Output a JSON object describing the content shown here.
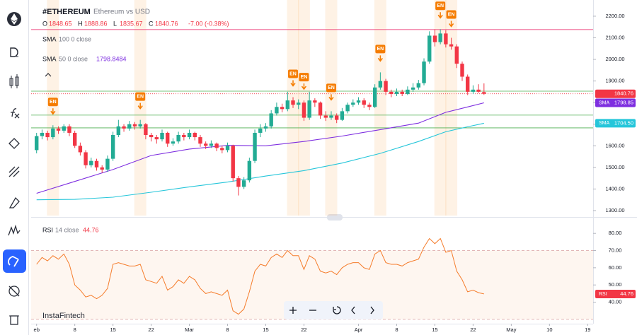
{
  "header": {
    "symbol": "#ETHEREUM",
    "description": "Ethereum vs USD",
    "ohlc": [
      {
        "key": "O",
        "value": "1848.65"
      },
      {
        "key": "H",
        "value": "1888.86"
      },
      {
        "key": "L",
        "value": "1835.67"
      },
      {
        "key": "C",
        "value": "1840.76"
      }
    ],
    "change": "-7.00 (-0.38%)"
  },
  "watermark": "InstaFintech",
  "chart_data": [
    {
      "type": "candlestick",
      "up_color": "#22ab94",
      "down_color": "#f23645",
      "xlim": [
        -1,
        102
      ],
      "xticks": [
        {
          "value": 0,
          "label": "eb"
        },
        {
          "value": 7,
          "label": "8"
        },
        {
          "value": 14,
          "label": "15"
        },
        {
          "value": 21,
          "label": "22"
        },
        {
          "value": 28,
          "label": "Mar"
        },
        {
          "value": 35,
          "label": "8"
        },
        {
          "value": 42,
          "label": "15"
        },
        {
          "value": 49,
          "label": "22"
        },
        {
          "value": 59,
          "label": "Apr"
        },
        {
          "value": 66,
          "label": "8"
        },
        {
          "value": 73,
          "label": "15"
        },
        {
          "value": 80,
          "label": "22"
        },
        {
          "value": 87,
          "label": "May"
        },
        {
          "value": 94,
          "label": "10"
        },
        {
          "value": 101,
          "label": "19"
        }
      ],
      "ylim": [
        1277,
        2275
      ],
      "yticks": [
        {
          "value": 2200,
          "label": "2200.00"
        },
        {
          "value": 2100,
          "label": "2100.00"
        },
        {
          "value": 2000,
          "label": "2000.00"
        },
        {
          "value": 1900,
          "label": "1900.00"
        },
        {
          "value": 1800,
          "label": "1800.00"
        },
        {
          "value": 1700,
          "label": "1700.00"
        },
        {
          "value": 1600,
          "label": "1600.00"
        },
        {
          "value": 1500,
          "label": "1500.00"
        },
        {
          "value": 1400,
          "label": "1400.00"
        },
        {
          "value": 1300,
          "label": "1300.00"
        }
      ],
      "candles": [
        [
          1580,
          1660,
          1565,
          1645
        ],
        [
          1645,
          1675,
          1630,
          1660
        ],
        [
          1660,
          1670,
          1625,
          1640
        ],
        [
          1640,
          1695,
          1630,
          1680
        ],
        [
          1680,
          1690,
          1655,
          1670
        ],
        [
          1670,
          1700,
          1660,
          1690
        ],
        [
          1690,
          1700,
          1645,
          1660
        ],
        [
          1660,
          1670,
          1590,
          1600
        ],
        [
          1600,
          1615,
          1555,
          1570
        ],
        [
          1570,
          1580,
          1495,
          1510
        ],
        [
          1510,
          1545,
          1500,
          1530
        ],
        [
          1530,
          1540,
          1485,
          1500
        ],
        [
          1500,
          1510,
          1475,
          1490
        ],
        [
          1490,
          1555,
          1480,
          1540
        ],
        [
          1540,
          1665,
          1530,
          1650
        ],
        [
          1650,
          1720,
          1640,
          1690
        ],
        [
          1690,
          1700,
          1665,
          1680
        ],
        [
          1680,
          1715,
          1670,
          1700
        ],
        [
          1700,
          1710,
          1675,
          1690
        ],
        [
          1690,
          1720,
          1680,
          1700
        ],
        [
          1700,
          1705,
          1630,
          1650
        ],
        [
          1650,
          1660,
          1620,
          1640
        ],
        [
          1640,
          1650,
          1610,
          1630
        ],
        [
          1630,
          1675,
          1620,
          1660
        ],
        [
          1660,
          1665,
          1595,
          1610
        ],
        [
          1610,
          1635,
          1600,
          1620
        ],
        [
          1620,
          1665,
          1610,
          1650
        ],
        [
          1650,
          1660,
          1625,
          1640
        ],
        [
          1640,
          1675,
          1630,
          1660
        ],
        [
          1660,
          1665,
          1625,
          1640
        ],
        [
          1640,
          1650,
          1595,
          1610
        ],
        [
          1610,
          1620,
          1585,
          1600
        ],
        [
          1600,
          1625,
          1590,
          1610
        ],
        [
          1610,
          1615,
          1575,
          1590
        ],
        [
          1590,
          1600,
          1565,
          1580
        ],
        [
          1580,
          1615,
          1570,
          1600
        ],
        [
          1600,
          1605,
          1435,
          1450
        ],
        [
          1450,
          1460,
          1370,
          1410
        ],
        [
          1410,
          1455,
          1400,
          1440
        ],
        [
          1440,
          1545,
          1430,
          1530
        ],
        [
          1530,
          1675,
          1520,
          1660
        ],
        [
          1660,
          1700,
          1640,
          1680
        ],
        [
          1680,
          1705,
          1665,
          1690
        ],
        [
          1690,
          1765,
          1680,
          1750
        ],
        [
          1750,
          1800,
          1740,
          1780
        ],
        [
          1780,
          1795,
          1755,
          1770
        ],
        [
          1770,
          1850,
          1760,
          1810
        ],
        [
          1810,
          1825,
          1775,
          1790
        ],
        [
          1790,
          1815,
          1770,
          1800
        ],
        [
          1800,
          1810,
          1715,
          1730
        ],
        [
          1730,
          1850,
          1720,
          1810
        ],
        [
          1810,
          1820,
          1780,
          1800
        ],
        [
          1800,
          1805,
          1725,
          1740
        ],
        [
          1740,
          1760,
          1715,
          1730
        ],
        [
          1730,
          1760,
          1720,
          1740
        ],
        [
          1740,
          1750,
          1705,
          1720
        ],
        [
          1720,
          1775,
          1715,
          1760
        ],
        [
          1760,
          1800,
          1750,
          1790
        ],
        [
          1790,
          1815,
          1780,
          1800
        ],
        [
          1800,
          1825,
          1790,
          1810
        ],
        [
          1810,
          1820,
          1775,
          1790
        ],
        [
          1790,
          1800,
          1765,
          1780
        ],
        [
          1780,
          1885,
          1775,
          1870
        ],
        [
          1870,
          1940,
          1860,
          1900
        ],
        [
          1900,
          1910,
          1835,
          1850
        ],
        [
          1850,
          1860,
          1825,
          1840
        ],
        [
          1840,
          1865,
          1830,
          1850
        ],
        [
          1850,
          1860,
          1830,
          1840
        ],
        [
          1840,
          1875,
          1835,
          1860
        ],
        [
          1860,
          1890,
          1850,
          1870
        ],
        [
          1870,
          1905,
          1860,
          1890
        ],
        [
          1890,
          2005,
          1880,
          1990
        ],
        [
          1990,
          2130,
          1980,
          2110
        ],
        [
          2110,
          2140,
          2060,
          2080
        ],
        [
          2080,
          2140,
          2070,
          2120
        ],
        [
          2120,
          2135,
          2055,
          2070
        ],
        [
          2070,
          2100,
          2045,
          2060
        ],
        [
          2060,
          2070,
          1960,
          1980
        ],
        [
          1980,
          1990,
          1900,
          1920
        ],
        [
          1920,
          1930,
          1835,
          1850
        ],
        [
          1850,
          1880,
          1840,
          1860
        ],
        [
          1860,
          1885,
          1845,
          1850
        ],
        [
          1848.65,
          1888.86,
          1835.67,
          1840.76
        ]
      ],
      "price_label": {
        "value": 1840.76,
        "label": "1840.76",
        "color": "#f23645"
      },
      "indicators": [
        {
          "name": "SMA",
          "params": "100 0 close",
          "color": "#26c6da",
          "x": [
            0,
            7,
            14,
            21,
            28,
            35,
            42,
            49,
            56,
            63,
            70,
            75,
            79,
            82
          ],
          "values": [
            1350,
            1352,
            1362,
            1385,
            1410,
            1432,
            1460,
            1485,
            1520,
            1565,
            1620,
            1665,
            1688,
            1704.5
          ],
          "last_label": "1704.50"
        },
        {
          "name": "SMA",
          "params": "50 0 close",
          "value": "1798.8484",
          "color": "#7e2fe0",
          "x": [
            0,
            7,
            14,
            21,
            28,
            35,
            42,
            49,
            56,
            63,
            70,
            75,
            79,
            82
          ],
          "values": [
            1380,
            1435,
            1490,
            1555,
            1585,
            1602,
            1600,
            1620,
            1645,
            1675,
            1705,
            1755,
            1780,
            1798.85
          ],
          "last_label": "1798.85"
        }
      ],
      "hlines": [
        {
          "value": 2138,
          "color": "#e91e63"
        },
        {
          "value": 1853,
          "color": "#4caf50"
        },
        {
          "value": 1742,
          "color": "#4caf50"
        },
        {
          "value": 1683,
          "color": "#4caf50"
        }
      ],
      "events": [
        {
          "index": 3,
          "label": "EN"
        },
        {
          "index": 19,
          "label": "EN"
        },
        {
          "index": 47,
          "label": "EN"
        },
        {
          "index": 49,
          "label": "EN"
        },
        {
          "index": 54,
          "label": "EN"
        },
        {
          "index": 63,
          "label": "EN"
        },
        {
          "index": 74,
          "label": "EN"
        },
        {
          "index": 76,
          "label": "EN"
        }
      ],
      "event_color": "#f57c00"
    },
    {
      "type": "line",
      "title": "RSI",
      "params": "14 close",
      "value": "44.76",
      "color": "#f57c2b",
      "ylim": [
        28.3,
        88.3
      ],
      "yticks": [
        {
          "value": 80,
          "label": "80.00"
        },
        {
          "value": 70,
          "label": "70.00"
        },
        {
          "value": 60,
          "label": "60.00"
        },
        {
          "value": 50,
          "label": "50.00"
        },
        {
          "value": 40,
          "label": "40.00"
        }
      ],
      "band": [
        30,
        70
      ],
      "values": [
        62,
        66,
        64,
        67,
        65,
        68,
        62,
        50,
        47,
        43,
        44,
        42,
        44,
        48,
        62,
        63,
        62,
        61,
        61,
        62,
        53,
        52,
        51,
        55,
        47,
        49,
        53,
        51,
        55,
        53,
        48,
        45,
        46,
        45,
        44,
        47,
        35,
        33,
        36,
        46,
        58,
        62,
        61,
        66,
        68,
        66,
        70,
        67,
        67,
        59,
        67,
        65,
        58,
        57,
        58,
        56,
        60,
        62,
        63,
        63,
        60,
        59,
        68,
        70,
        63,
        62,
        62,
        61,
        63,
        64,
        65,
        72,
        77,
        74,
        77,
        69,
        70,
        58,
        53,
        46,
        47,
        45.5,
        44.76
      ],
      "last_label": "44.76"
    }
  ]
}
